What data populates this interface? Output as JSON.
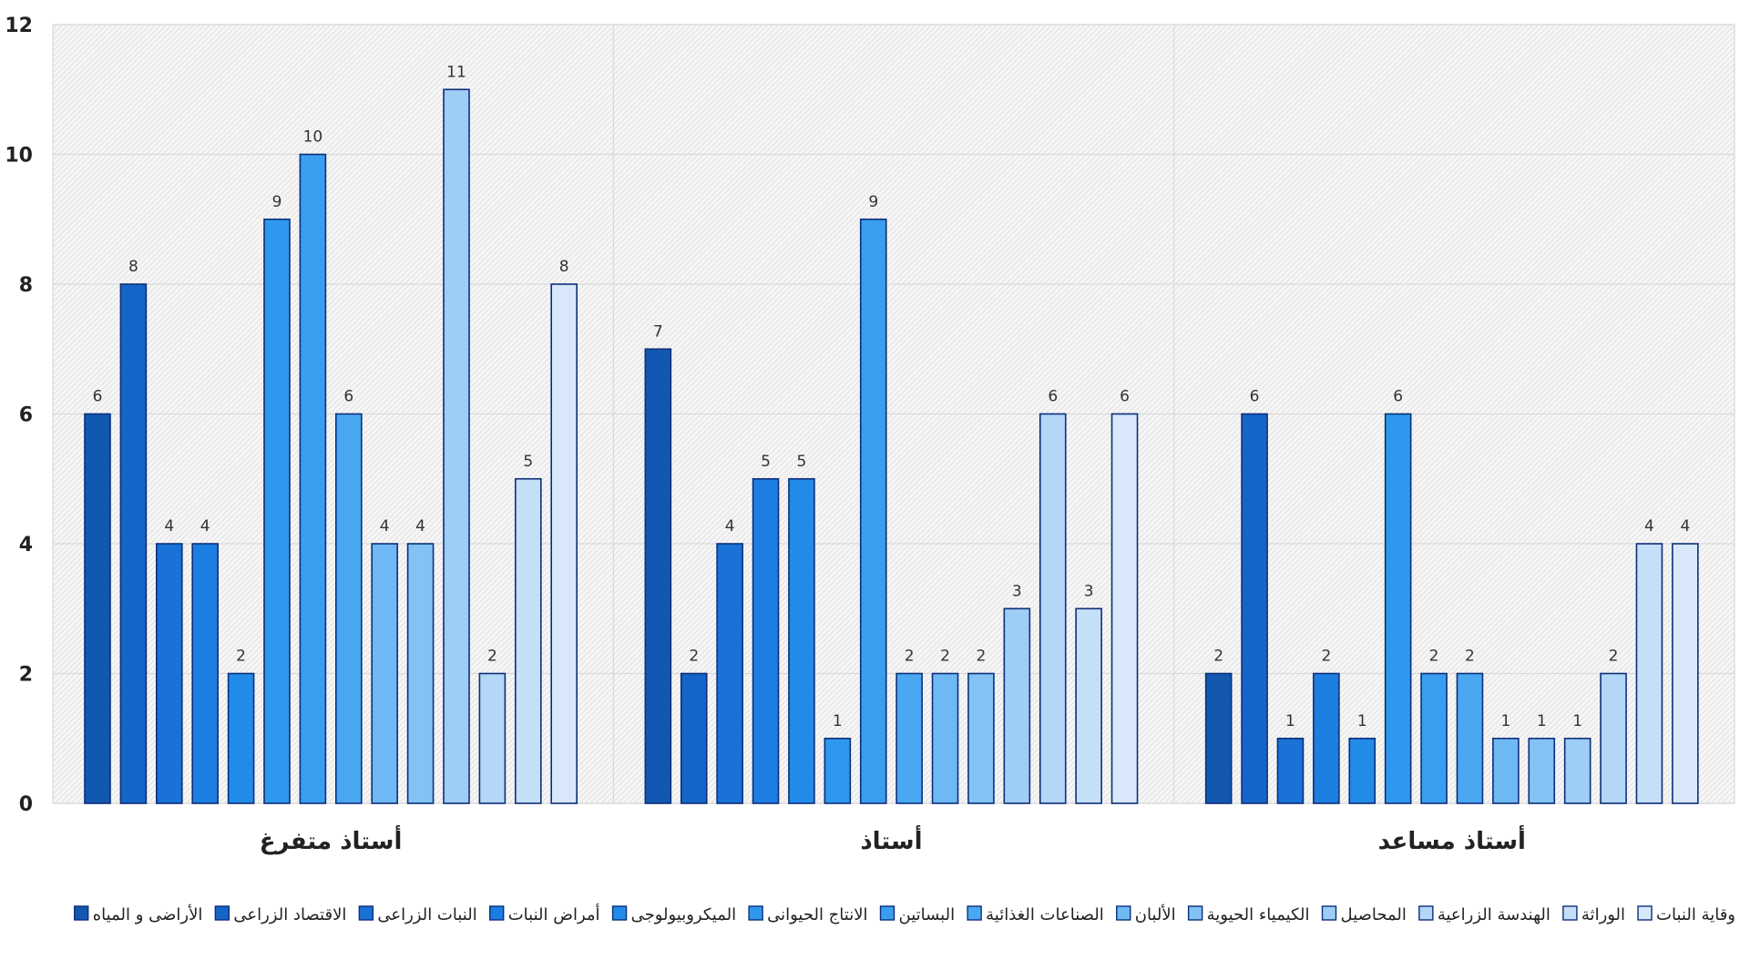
{
  "chart_data": {
    "type": "bar",
    "categories": [
      "أستاذ متفرغ",
      "أستاذ",
      "أستاذ مساعد"
    ],
    "ylim": [
      0,
      12
    ],
    "yticks": [
      0,
      2,
      4,
      6,
      8,
      10,
      12
    ],
    "grid": true,
    "legend_position": "bottom",
    "series": [
      {
        "name": "الأراضى و المياه",
        "color": "#1258B0",
        "values": [
          6,
          7,
          2
        ]
      },
      {
        "name": "الاقتصاد الزراعى",
        "color": "#1565C8",
        "values": [
          8,
          2,
          6
        ]
      },
      {
        "name": "النبات الزراعى",
        "color": "#1A72D6",
        "values": [
          4,
          4,
          1
        ]
      },
      {
        "name": "أمراض النبات",
        "color": "#1C7EE0",
        "values": [
          4,
          5,
          2
        ]
      },
      {
        "name": "الميكروبيولوجى",
        "color": "#218BE8",
        "values": [
          2,
          5,
          1
        ]
      },
      {
        "name": "الانتاج الحيوانى",
        "color": "#2E98EE",
        "values": [
          9,
          1,
          6
        ]
      },
      {
        "name": "البساتين",
        "color": "#3A9EF0",
        "values": [
          10,
          9,
          2
        ]
      },
      {
        "name": "الصناعات الغذائية",
        "color": "#4AA8F2",
        "values": [
          6,
          2,
          2
        ]
      },
      {
        "name": "الألبان",
        "color": "#6EB8F4",
        "values": [
          4,
          2,
          1
        ]
      },
      {
        "name": "الكيمياء الحيوية",
        "color": "#82C2F5",
        "values": [
          4,
          2,
          1
        ]
      },
      {
        "name": "المحاصيل",
        "color": "#9ECDF6",
        "values": [
          11,
          3,
          1
        ]
      },
      {
        "name": "الهندسة الزراعية",
        "color": "#B4D6F7",
        "values": [
          2,
          6,
          2
        ]
      },
      {
        "name": "الوراثة",
        "color": "#C6DFF8",
        "values": [
          5,
          3,
          4
        ]
      },
      {
        "name": "وقاية النبات",
        "color": "#D8E8FA",
        "values": [
          8,
          6,
          4
        ]
      }
    ]
  }
}
